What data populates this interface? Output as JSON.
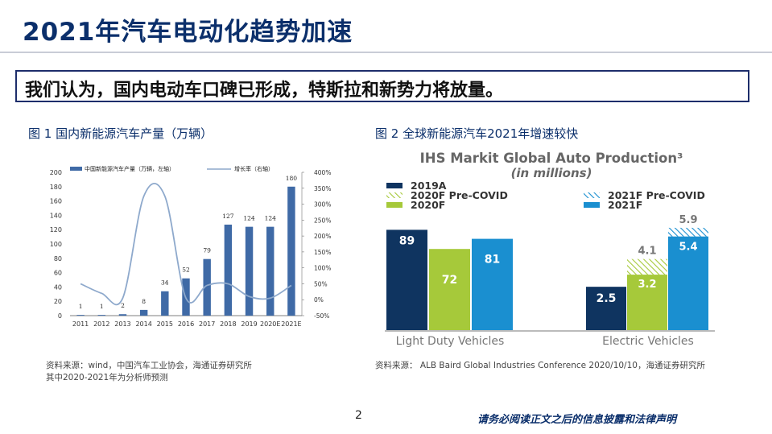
{
  "page": {
    "title": "2021年汽车电动化趋势加速",
    "banner": "我们认为，国内电动车口碑已形成，特斯拉和新势力将放量。",
    "page_number": "2",
    "disclaimer": "请务必阅读正文之后的信息披露和法律声明"
  },
  "fig1": {
    "caption": "图 1 国内新能源汽车产量（万辆）",
    "source_line1": "资料来源：wind，中国汽车工业协会，海通证券研究所",
    "source_line2": "其中2020-2021年为分析师预测"
  },
  "fig2": {
    "caption": "图 2 全球新能源汽车2021年增速较快",
    "source": "资料来源： ALB Baird Global Industries Conference 2020/10/10，海通证券研究所"
  },
  "colors": {
    "title": "#0b2f6b",
    "bar_blue": "#3f6aa6",
    "line_blue": "#8ea9cc",
    "navy": "#0f3460",
    "lime": "#a6c93a",
    "sky": "#1a8fd0"
  },
  "chart_data": [
    {
      "type": "bar",
      "categories": [
        "2011",
        "2012",
        "2013",
        "2014",
        "2015",
        "2016",
        "2017",
        "2018",
        "2019",
        "2020E",
        "2021E"
      ],
      "series": [
        {
          "name": "中国新能源汽车产量（万辆，左轴）",
          "type": "bar",
          "axis": "left",
          "values": [
            1,
            1,
            2,
            8,
            34,
            52,
            79,
            127,
            124,
            124,
            180
          ],
          "labels": [
            "1",
            "1",
            "2",
            "8",
            "34",
            "52",
            "79",
            "127",
            "124",
            "124",
            "180"
          ]
        },
        {
          "name": "增长率（右轴）",
          "type": "line",
          "axis": "right",
          "values": [
            50,
            20,
            5,
            325,
            325,
            5,
            45,
            50,
            10,
            5,
            45
          ]
        }
      ],
      "ylim_left": [
        0,
        200
      ],
      "yticks_left": [
        "200",
        "180",
        "160",
        "140",
        "120",
        "100",
        "80",
        "60",
        "40",
        "20",
        "0"
      ],
      "ylim_right": [
        -50,
        400
      ],
      "yticks_right": [
        "400%",
        "350%",
        "300%",
        "250%",
        "200%",
        "150%",
        "100%",
        "50%",
        "0%",
        "-50%"
      ],
      "legend_position": "top",
      "grid": false
    },
    {
      "type": "bar",
      "title": "IHS Markit Global Auto Production³",
      "subtitle": "(in millions)",
      "categories": [
        "Light Duty Vehicles",
        "Electric Vehicles"
      ],
      "series": [
        {
          "name": "2019A",
          "values": [
            89,
            2.5
          ]
        },
        {
          "name": "2020F Pre-COVID",
          "values": [
            null,
            4.1
          ]
        },
        {
          "name": "2020F",
          "values": [
            72,
            3.2
          ]
        },
        {
          "name": "2021F Pre-COVID",
          "values": [
            null,
            5.9
          ]
        },
        {
          "name": "2021F",
          "values": [
            81,
            5.4
          ]
        }
      ],
      "labels": {
        "ldv_2019a": "89",
        "ldv_2020f": "72",
        "ldv_2021f": "81",
        "ev_2019a": "2.5",
        "ev_2020f_pre": "4.1",
        "ev_2020f": "3.2",
        "ev_2021f_pre": "5.9",
        "ev_2021f": "5.4"
      },
      "legend_position": "top"
    }
  ]
}
